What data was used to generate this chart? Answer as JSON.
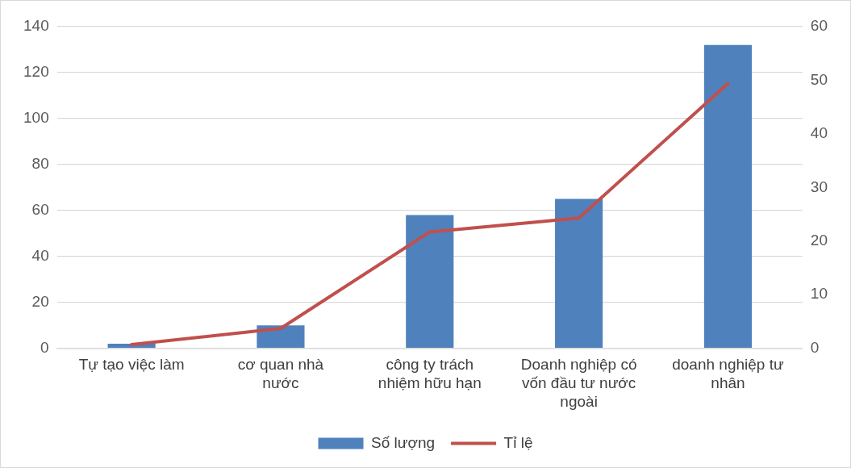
{
  "chart_data": {
    "type": "bar",
    "categories": [
      "Tự tạo việc làm",
      "cơ quan nhà nước",
      "công ty trách nhiệm hữu hạn",
      "Doanh nghiệp có vốn đầu tư nước ngoài",
      "doanh nghiệp tư nhân"
    ],
    "series": [
      {
        "name": "Số lượng",
        "color": "#4f81bd",
        "values": [
          2,
          10,
          58,
          65,
          132
        ]
      },
      {
        "name": "Tỉ lệ",
        "type": "line",
        "axis": "y2",
        "color": "#c0504d",
        "values": [
          0.7,
          3.7,
          21.7,
          24.3,
          49.4
        ]
      }
    ],
    "ylim": [
      0,
      140
    ],
    "yticks": [
      0,
      20,
      40,
      60,
      80,
      100,
      120,
      140
    ],
    "y2lim": [
      0,
      60
    ],
    "y2ticks": [
      0,
      10,
      20,
      30,
      40,
      50,
      60
    ],
    "grid": "y",
    "legend": "bottom",
    "marker": "none",
    "line_style": "solid"
  }
}
